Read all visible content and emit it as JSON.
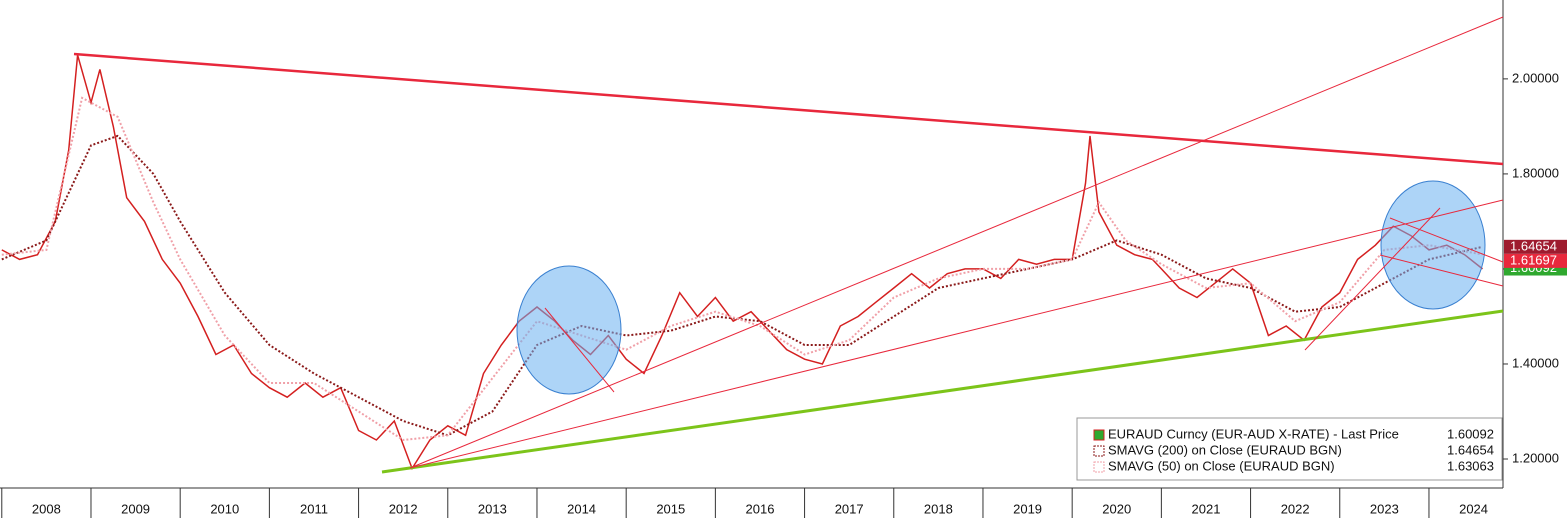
{
  "chart_data": {
    "type": "line",
    "xlim": [
      2007.98,
      2024.83
    ],
    "ylim": [
      1.139,
      2.166
    ],
    "xticks": [
      {
        "value": 2008.5,
        "label": "2008"
      },
      {
        "value": 2009.5,
        "label": "2009"
      },
      {
        "value": 2010.5,
        "label": "2010"
      },
      {
        "value": 2011.5,
        "label": "2011"
      },
      {
        "value": 2012.5,
        "label": "2012"
      },
      {
        "value": 2013.5,
        "label": "2013"
      },
      {
        "value": 2014.5,
        "label": "2014"
      },
      {
        "value": 2015.5,
        "label": "2015"
      },
      {
        "value": 2016.5,
        "label": "2016"
      },
      {
        "value": 2017.5,
        "label": "2017"
      },
      {
        "value": 2018.5,
        "label": "2018"
      },
      {
        "value": 2019.5,
        "label": "2019"
      },
      {
        "value": 2020.5,
        "label": "2020"
      },
      {
        "value": 2021.5,
        "label": "2021"
      },
      {
        "value": 2022.5,
        "label": "2022"
      },
      {
        "value": 2023.5,
        "label": "2023"
      },
      {
        "value": 2024.5,
        "label": "2024"
      }
    ],
    "yticks": [
      {
        "value": 1.2,
        "label": "1.20000"
      },
      {
        "value": 1.4,
        "label": "1.40000"
      },
      {
        "value": 1.6,
        "label": "1.60000"
      },
      {
        "value": 1.8,
        "label": "1.80000"
      },
      {
        "value": 2.0,
        "label": "2.00000"
      }
    ],
    "series": [
      {
        "name": "EURAUD Curncy (EUR-AUD X-RATE) - Last Price",
        "last": 1.60092,
        "color": "#d42020",
        "style": "solid",
        "x": [
          2008.0,
          2008.2,
          2008.4,
          2008.6,
          2008.75,
          2008.85,
          2009.0,
          2009.1,
          2009.25,
          2009.4,
          2009.6,
          2009.8,
          2010.0,
          2010.2,
          2010.4,
          2010.6,
          2010.8,
          2011.0,
          2011.2,
          2011.4,
          2011.6,
          2011.8,
          2012.0,
          2012.2,
          2012.4,
          2012.6,
          2012.8,
          2013.0,
          2013.2,
          2013.4,
          2013.6,
          2013.8,
          2014.0,
          2014.2,
          2014.4,
          2014.6,
          2014.8,
          2015.0,
          2015.2,
          2015.4,
          2015.6,
          2015.8,
          2016.0,
          2016.2,
          2016.4,
          2016.6,
          2016.8,
          2017.0,
          2017.2,
          2017.4,
          2017.6,
          2017.8,
          2018.0,
          2018.2,
          2018.4,
          2018.6,
          2018.8,
          2019.0,
          2019.2,
          2019.4,
          2019.6,
          2019.8,
          2020.0,
          2020.15,
          2020.2,
          2020.3,
          2020.5,
          2020.7,
          2020.9,
          2021.0,
          2021.2,
          2021.4,
          2021.6,
          2021.8,
          2022.0,
          2022.2,
          2022.4,
          2022.6,
          2022.8,
          2023.0,
          2023.2,
          2023.4,
          2023.6,
          2023.8,
          2024.0,
          2024.2,
          2024.4,
          2024.6
        ],
        "values": [
          1.64,
          1.62,
          1.63,
          1.7,
          1.85,
          2.05,
          1.95,
          2.02,
          1.9,
          1.75,
          1.7,
          1.62,
          1.57,
          1.5,
          1.42,
          1.44,
          1.38,
          1.35,
          1.33,
          1.36,
          1.33,
          1.35,
          1.26,
          1.24,
          1.28,
          1.18,
          1.24,
          1.27,
          1.25,
          1.38,
          1.44,
          1.49,
          1.52,
          1.49,
          1.45,
          1.42,
          1.46,
          1.41,
          1.38,
          1.46,
          1.55,
          1.5,
          1.54,
          1.49,
          1.51,
          1.47,
          1.43,
          1.41,
          1.4,
          1.48,
          1.5,
          1.53,
          1.56,
          1.59,
          1.56,
          1.59,
          1.6,
          1.6,
          1.58,
          1.62,
          1.61,
          1.62,
          1.62,
          1.78,
          1.88,
          1.72,
          1.65,
          1.63,
          1.62,
          1.6,
          1.56,
          1.54,
          1.57,
          1.6,
          1.57,
          1.46,
          1.48,
          1.45,
          1.52,
          1.55,
          1.62,
          1.65,
          1.69,
          1.67,
          1.64,
          1.65,
          1.63,
          1.6
        ]
      },
      {
        "name": "SMAVG (200)  on Close (EURAUD BGN)",
        "last": 1.64654,
        "color": "#8b1a1a",
        "style": "dotted",
        "x": [
          2008.0,
          2008.5,
          2009.0,
          2009.3,
          2009.7,
          2010.0,
          2010.5,
          2011.0,
          2011.5,
          2012.0,
          2012.5,
          2013.0,
          2013.5,
          2014.0,
          2014.5,
          2015.0,
          2015.5,
          2016.0,
          2016.5,
          2017.0,
          2017.5,
          2018.0,
          2018.5,
          2019.0,
          2019.5,
          2020.0,
          2020.5,
          2021.0,
          2021.5,
          2022.0,
          2022.5,
          2023.0,
          2023.5,
          2024.0,
          2024.6
        ],
        "values": [
          1.62,
          1.66,
          1.86,
          1.88,
          1.8,
          1.7,
          1.55,
          1.44,
          1.38,
          1.33,
          1.28,
          1.25,
          1.3,
          1.44,
          1.48,
          1.46,
          1.47,
          1.5,
          1.49,
          1.44,
          1.44,
          1.5,
          1.56,
          1.58,
          1.6,
          1.62,
          1.66,
          1.63,
          1.58,
          1.56,
          1.51,
          1.52,
          1.57,
          1.62,
          1.64654
        ]
      },
      {
        "name": "SMAVG (50)  on Close (EURAUD BGN)",
        "last": 1.63063,
        "color": "#f0a0a8",
        "style": "dotted",
        "x": [
          2008.0,
          2008.5,
          2008.9,
          2009.3,
          2009.7,
          2010.0,
          2010.5,
          2011.0,
          2011.5,
          2012.0,
          2012.5,
          2013.0,
          2013.5,
          2014.0,
          2014.5,
          2015.0,
          2015.5,
          2016.0,
          2016.5,
          2017.0,
          2017.5,
          2018.0,
          2018.5,
          2019.0,
          2019.5,
          2020.0,
          2020.3,
          2020.6,
          2021.0,
          2021.5,
          2022.0,
          2022.5,
          2023.0,
          2023.5,
          2024.0,
          2024.6
        ],
        "values": [
          1.63,
          1.64,
          1.96,
          1.92,
          1.74,
          1.62,
          1.46,
          1.36,
          1.36,
          1.3,
          1.24,
          1.25,
          1.37,
          1.49,
          1.46,
          1.43,
          1.48,
          1.51,
          1.48,
          1.42,
          1.45,
          1.54,
          1.58,
          1.6,
          1.6,
          1.62,
          1.74,
          1.66,
          1.61,
          1.56,
          1.57,
          1.49,
          1.53,
          1.64,
          1.65,
          1.63063
        ]
      }
    ],
    "price_tags": [
      {
        "value": 1.64654,
        "color": "#9e1b2e"
      },
      {
        "value": 1.61697,
        "color": "#e8283c"
      },
      {
        "value": 1.60092,
        "color": "#2fa82f"
      }
    ]
  }
}
